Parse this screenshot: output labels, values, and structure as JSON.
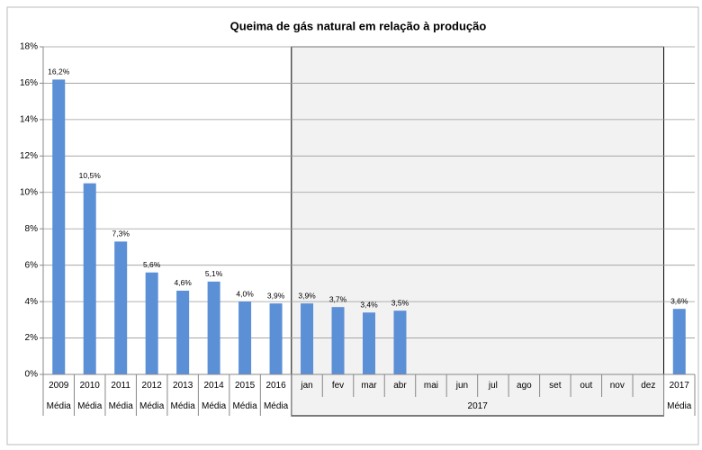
{
  "chart_data": {
    "type": "bar",
    "title": "Queima de gás natural em relação à produção",
    "categories": [
      "2009",
      "2010",
      "2011",
      "2012",
      "2013",
      "2014",
      "2015",
      "2016",
      "jan",
      "fev",
      "mar",
      "abr",
      "mai",
      "jun",
      "jul",
      "ago",
      "set",
      "out",
      "nov",
      "dez",
      "2017"
    ],
    "category_groups": [
      {
        "label": "Média",
        "size": 1
      },
      {
        "label": "Média",
        "size": 1
      },
      {
        "label": "Média",
        "size": 1
      },
      {
        "label": "Média",
        "size": 1
      },
      {
        "label": "Média",
        "size": 1
      },
      {
        "label": "Média",
        "size": 1
      },
      {
        "label": "Média",
        "size": 1
      },
      {
        "label": "Média",
        "size": 1
      },
      {
        "label": "2017",
        "size": 12
      },
      {
        "label": "Média",
        "size": 1
      }
    ],
    "values": [
      16.2,
      10.5,
      7.3,
      5.6,
      4.6,
      5.1,
      4.0,
      3.9,
      3.9,
      3.7,
      3.4,
      3.5,
      null,
      null,
      null,
      null,
      null,
      null,
      null,
      null,
      3.6
    ],
    "value_labels": [
      "16,2%",
      "10,5%",
      "7,3%",
      "5,6%",
      "4,6%",
      "5,1%",
      "4,0%",
      "3,9%",
      "3,9%",
      "3,7%",
      "3,4%",
      "3,5%",
      null,
      null,
      null,
      null,
      null,
      null,
      null,
      null,
      "3,6%"
    ],
    "color": "#5b8fd6",
    "ylim": [
      0,
      18
    ],
    "yticks": [
      {
        "value": 0,
        "label": "0%"
      },
      {
        "value": 2,
        "label": "2%"
      },
      {
        "value": 4,
        "label": "4%"
      },
      {
        "value": 6,
        "label": "6%"
      },
      {
        "value": 8,
        "label": "8%"
      },
      {
        "value": 10,
        "label": "10%"
      },
      {
        "value": 12,
        "label": "12%"
      },
      {
        "value": 14,
        "label": "14%"
      },
      {
        "value": 16,
        "label": "16%"
      },
      {
        "value": 18,
        "label": "18%"
      }
    ],
    "grid": true
  }
}
